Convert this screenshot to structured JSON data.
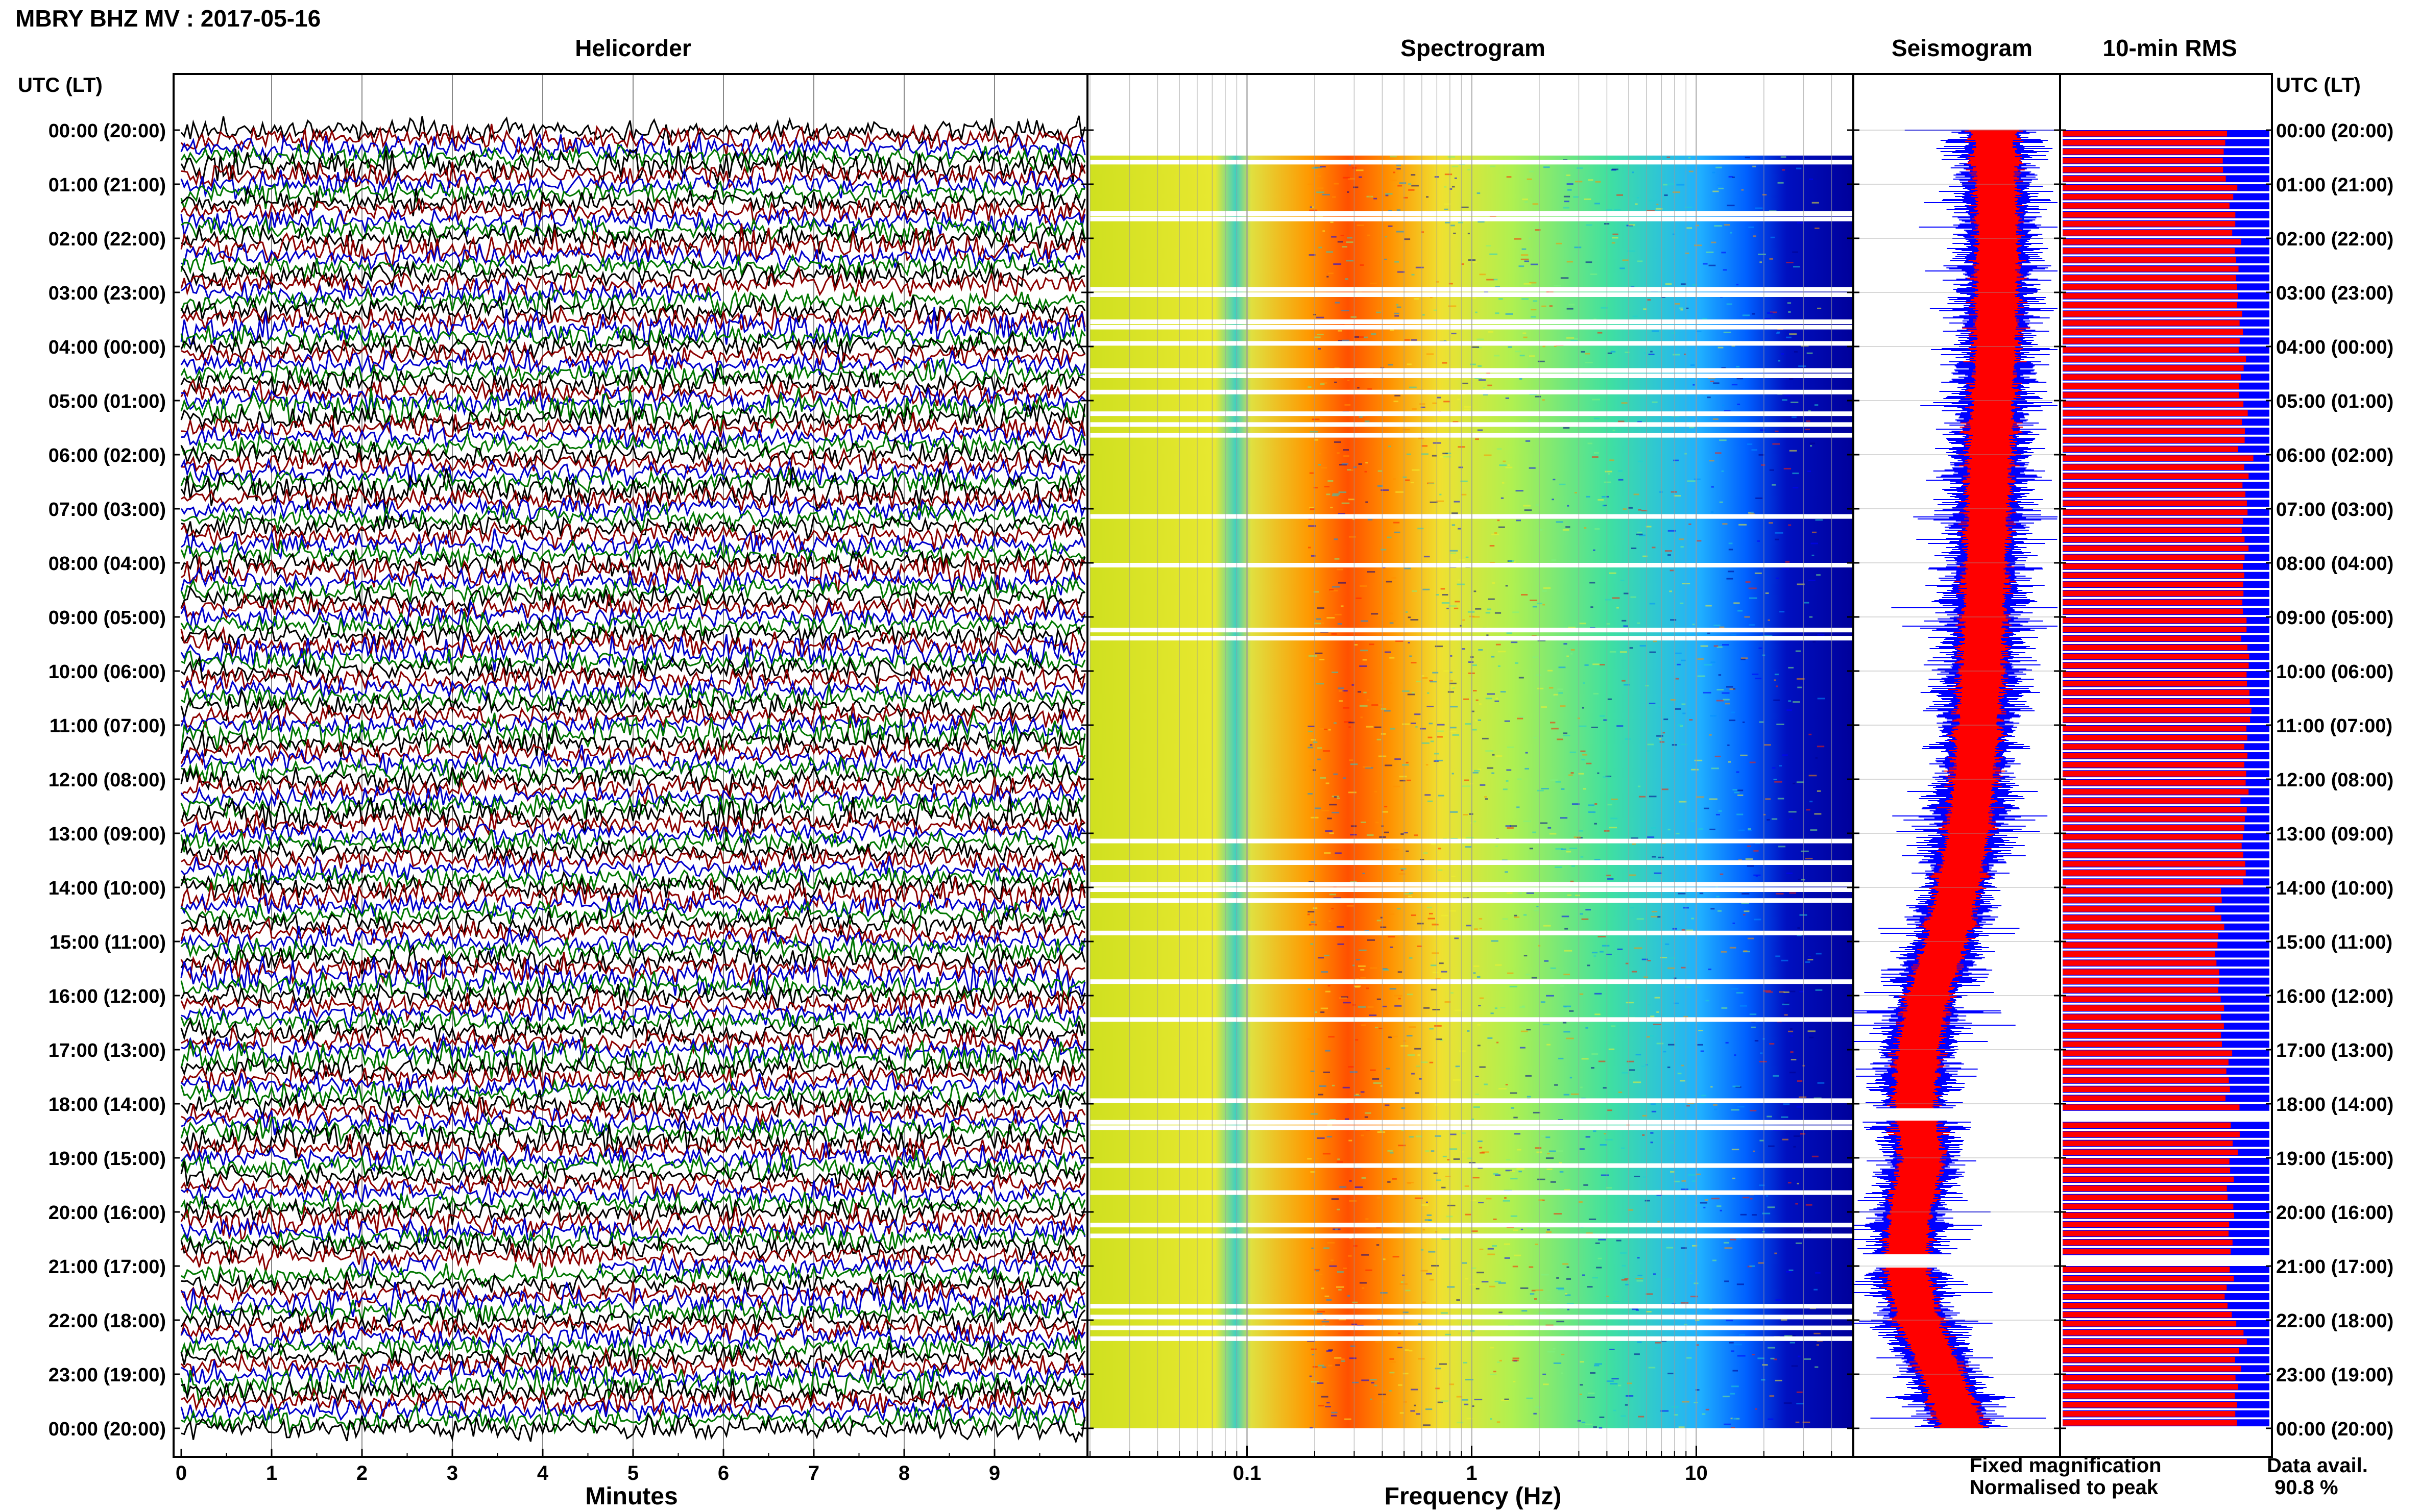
{
  "title": "MBRY BHZ MV : 2017-05-16",
  "panels": {
    "helicorder": "Helicorder",
    "spectrogram": "Spectrogram",
    "seismogram": "Seismogram",
    "rms": "10-min RMS"
  },
  "time_axis_label": "UTC (LT)",
  "time_labels": [
    "00:00 (20:00)",
    "01:00 (21:00)",
    "02:00 (22:00)",
    "03:00 (23:00)",
    "04:00 (00:00)",
    "05:00 (01:00)",
    "06:00 (02:00)",
    "07:00 (03:00)",
    "08:00 (04:00)",
    "09:00 (05:00)",
    "10:00 (06:00)",
    "11:00 (07:00)",
    "12:00 (08:00)",
    "13:00 (09:00)",
    "14:00 (10:00)",
    "15:00 (11:00)",
    "16:00 (12:00)",
    "17:00 (13:00)",
    "18:00 (14:00)",
    "19:00 (15:00)",
    "20:00 (16:00)",
    "21:00 (17:00)",
    "22:00 (18:00)",
    "23:00 (19:00)",
    "00:00 (20:00)"
  ],
  "legend": {
    "fixed": "Fixed magnification",
    "normalised": "Normalised to peak",
    "fixed_color": "#0000ff",
    "normalised_color": "#ff0000"
  },
  "data_avail": {
    "label": "Data avail.",
    "value": "90.8 %"
  },
  "chart_data": [
    {
      "type": "line",
      "name": "helicorder",
      "title": "Helicorder",
      "xlabel": "Minutes",
      "xlim": [
        0,
        10
      ],
      "x_ticks": [
        "0",
        "1",
        "2",
        "3",
        "4",
        "5",
        "6",
        "7",
        "8",
        "9"
      ],
      "trace_colors": [
        "#000000",
        "#8b0000",
        "#0000cc",
        "#007700"
      ],
      "traces_per_hour": 6,
      "gaps": [
        {
          "row": 18,
          "start_min": 6,
          "end_min": 10
        },
        {
          "row": 126,
          "start_min": 0,
          "end_min": 1.8
        },
        {
          "row": 126,
          "start_min": 2.9,
          "end_min": 4.6
        }
      ]
    },
    {
      "type": "heatmap",
      "name": "spectrogram",
      "title": "Spectrogram",
      "xlabel": "Frequency (Hz)",
      "xscale": "log",
      "xlim": [
        0.02,
        50
      ],
      "x_ticks": [
        "0.1",
        "1",
        "10"
      ],
      "colormap": "jet",
      "colormap_colors": [
        "#00008b",
        "#0000ff",
        "#0090ff",
        "#20d0d0",
        "#80f080",
        "#f0f030",
        "#ff9000",
        "#ff2000"
      ],
      "gap_hours": [
        0.3,
        0.55,
        1.5,
        1.6,
        2.9,
        3.0,
        3.5,
        3.6,
        3.9,
        4.4,
        4.5,
        4.8,
        5.2,
        5.4,
        5.6,
        7.1,
        8.0,
        9.2,
        9.35,
        13.1,
        13.5,
        13.9,
        14.0,
        14.2,
        14.8,
        15.7,
        16.4,
        17.9,
        18.3,
        18.4,
        19.1,
        19.6,
        20.2,
        20.4,
        21.7,
        21.9,
        22.1,
        22.3
      ]
    },
    {
      "type": "area",
      "name": "seismogram",
      "title": "Seismogram",
      "series": [
        {
          "name": "Fixed magnification",
          "color": "#0000ff"
        },
        {
          "name": "Normalised to peak",
          "color": "#ff0000"
        }
      ],
      "hours": [
        0,
        2,
        4,
        6,
        8,
        10,
        12,
        13,
        14,
        15,
        16,
        17,
        18,
        19,
        20,
        21,
        22,
        23,
        24
      ],
      "center_fraction": [
        0.68,
        0.7,
        0.69,
        0.66,
        0.64,
        0.62,
        0.58,
        0.55,
        0.5,
        0.44,
        0.35,
        0.3,
        0.28,
        0.32,
        0.26,
        0.24,
        0.3,
        0.42,
        0.52
      ],
      "gap_hours": [
        18.2,
        20.9
      ]
    },
    {
      "type": "bar",
      "name": "rms",
      "title": "10-min RMS",
      "series": [
        {
          "name": "Fixed magnification",
          "color": "#0000ff"
        },
        {
          "name": "Normalised to peak",
          "color": "#ff0000"
        }
      ],
      "bars_per_hour": 6,
      "fixed_level": 1.0,
      "normalised_level_by_hour": [
        0.78,
        0.83,
        0.85,
        0.86,
        0.86,
        0.87,
        0.89,
        0.88,
        0.88,
        0.89,
        0.89,
        0.88,
        0.89,
        0.88,
        0.76,
        0.75,
        0.76,
        0.8,
        0.84,
        0.8,
        0.81,
        0.82,
        0.85,
        0.84
      ],
      "gap_hours": [
        18.1,
        20.8
      ]
    }
  ]
}
